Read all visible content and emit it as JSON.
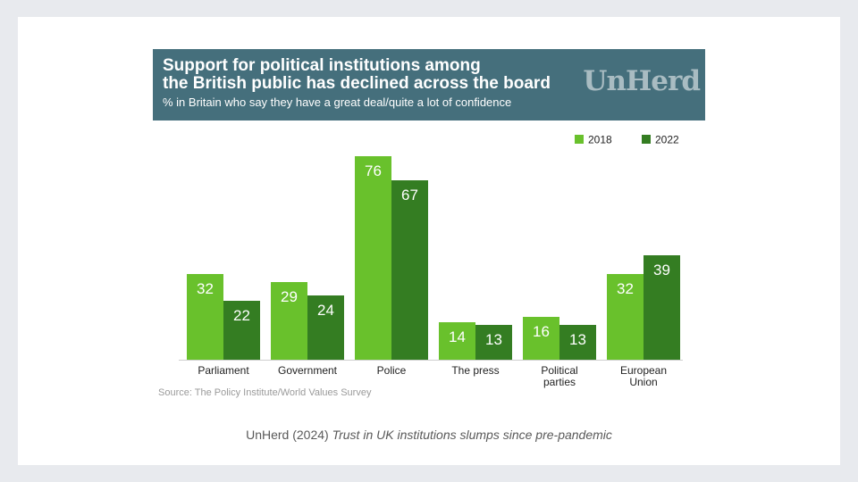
{
  "banner": {
    "title_line1": "Support for political institutions among",
    "title_line2": "the British public has declined across the board",
    "subtitle": "% in Britain who say they have a great deal/quite a lot of confidence",
    "brand": "UnHerd"
  },
  "source": "Source: The Policy Institute/World Values Survey",
  "caption": {
    "prefix": "UnHerd (2024) ",
    "italic": "Trust in UK institutions slumps since pre-pandemic"
  },
  "chart_data": {
    "type": "bar",
    "title": "Support for political institutions among the British public has declined across the board",
    "subtitle": "% in Britain who say they have a great deal/quite a lot of confidence",
    "categories": [
      "Parliament",
      "Government",
      "Police",
      "The press",
      "Political parties",
      "European Union"
    ],
    "category_lines": [
      [
        "Parliament"
      ],
      [
        "Government"
      ],
      [
        "Police"
      ],
      [
        "The press"
      ],
      [
        "Political",
        "parties"
      ],
      [
        "European",
        "Union"
      ]
    ],
    "series": [
      {
        "name": "2018",
        "color": "#69c12c",
        "values": [
          32,
          29,
          76,
          14,
          16,
          32
        ]
      },
      {
        "name": "2022",
        "color": "#347d22",
        "values": [
          22,
          24,
          67,
          13,
          13,
          39
        ]
      }
    ],
    "ylim": [
      0,
      80
    ],
    "legend": "top-right",
    "grid": false
  }
}
